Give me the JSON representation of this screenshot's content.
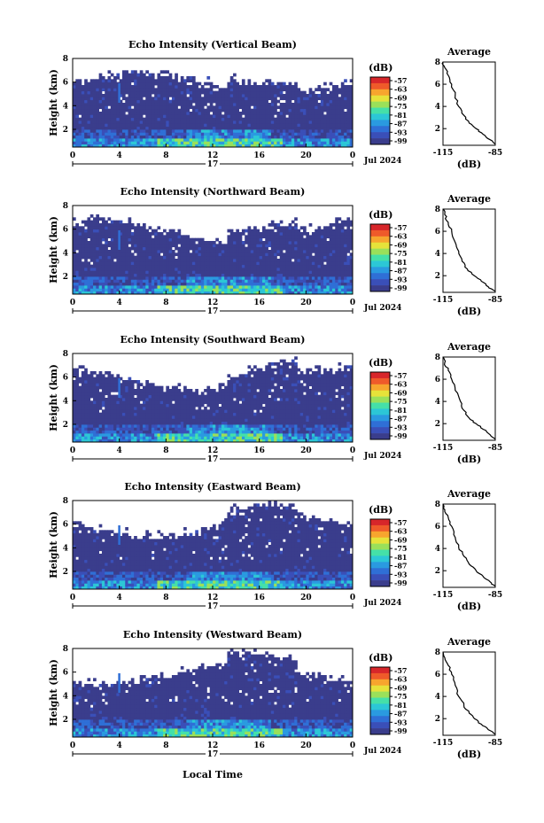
{
  "figure": {
    "xlabel_bottom": "Local Time",
    "date_label": "Jul 2024",
    "day_label": "17"
  },
  "chart_data": [
    {
      "type": "heatmap",
      "title": "Echo Intensity (Vertical Beam)",
      "ylabel": "Height (km)",
      "x_ticks": [
        "0",
        "4",
        "8",
        "12",
        "16",
        "20",
        "0"
      ],
      "y_ticks": [
        "2",
        "4",
        "6",
        "8"
      ],
      "xlim": [
        0,
        24
      ],
      "ylim": [
        0.5,
        8
      ],
      "colorbar": {
        "label": "(dB)",
        "ticks": [
          "-57",
          "-63",
          "-69",
          "-75",
          "-81",
          "-87",
          "-93",
          "-99"
        ],
        "range": [
          -102,
          -54
        ]
      },
      "profile": {
        "title": "Average",
        "xlabel": "(dB)",
        "x_ticks": [
          "-115",
          "-85"
        ],
        "y_ticks": [
          "2",
          "4",
          "6",
          "8"
        ],
        "xlim": [
          -115,
          -85
        ],
        "points": [
          [
            -85,
            0.6
          ],
          [
            -88,
            1.0
          ],
          [
            -92,
            1.5
          ],
          [
            -96,
            2.0
          ],
          [
            -100,
            2.5
          ],
          [
            -103,
            3.2
          ],
          [
            -106,
            4.0
          ],
          [
            -108,
            5.0
          ],
          [
            -110,
            6.0
          ],
          [
            -112,
            6.8
          ],
          [
            -114,
            7.5
          ],
          [
            -115,
            8.0
          ]
        ]
      }
    },
    {
      "type": "heatmap",
      "title": "Echo Intensity (Northward Beam)",
      "ylabel": "Height (km)",
      "x_ticks": [
        "0",
        "4",
        "8",
        "12",
        "16",
        "20",
        "0"
      ],
      "y_ticks": [
        "2",
        "4",
        "6",
        "8"
      ],
      "xlim": [
        0,
        24
      ],
      "ylim": [
        0.5,
        8
      ],
      "colorbar": {
        "label": "(dB)",
        "ticks": [
          "-57",
          "-63",
          "-69",
          "-75",
          "-81",
          "-87",
          "-93",
          "-99"
        ],
        "range": [
          -102,
          -54
        ]
      },
      "profile": {
        "title": "Average",
        "xlabel": "(dB)",
        "x_ticks": [
          "-115",
          "-85"
        ],
        "y_ticks": [
          "2",
          "4",
          "6",
          "8"
        ],
        "xlim": [
          -115,
          -85
        ],
        "points": [
          [
            -85,
            0.6
          ],
          [
            -89,
            1.0
          ],
          [
            -93,
            1.5
          ],
          [
            -97,
            2.0
          ],
          [
            -101,
            2.6
          ],
          [
            -104,
            3.3
          ],
          [
            -106,
            4.2
          ],
          [
            -108,
            5.0
          ],
          [
            -110,
            6.0
          ],
          [
            -112,
            6.8
          ],
          [
            -114,
            7.5
          ],
          [
            -115,
            8.0
          ]
        ]
      }
    },
    {
      "type": "heatmap",
      "title": "Echo Intensity (Southward Beam)",
      "ylabel": "Height (km)",
      "x_ticks": [
        "0",
        "4",
        "8",
        "12",
        "16",
        "20",
        "0"
      ],
      "y_ticks": [
        "2",
        "4",
        "6",
        "8"
      ],
      "xlim": [
        0,
        24
      ],
      "ylim": [
        0.5,
        8
      ],
      "colorbar": {
        "label": "(dB)",
        "ticks": [
          "-57",
          "-63",
          "-69",
          "-75",
          "-81",
          "-87",
          "-93",
          "-99"
        ],
        "range": [
          -102,
          -54
        ]
      },
      "profile": {
        "title": "Average",
        "xlabel": "(dB)",
        "x_ticks": [
          "-115",
          "-85"
        ],
        "y_ticks": [
          "2",
          "4",
          "6",
          "8"
        ],
        "xlim": [
          -115,
          -85
        ],
        "points": [
          [
            -85,
            0.6
          ],
          [
            -88,
            1.0
          ],
          [
            -92,
            1.5
          ],
          [
            -96,
            2.0
          ],
          [
            -100,
            2.5
          ],
          [
            -103,
            3.2
          ],
          [
            -105,
            4.0
          ],
          [
            -108,
            5.0
          ],
          [
            -110,
            6.0
          ],
          [
            -112,
            6.8
          ],
          [
            -114,
            7.5
          ],
          [
            -115,
            8.0
          ]
        ]
      }
    },
    {
      "type": "heatmap",
      "title": "Echo Intensity (Eastward Beam)",
      "ylabel": "Height (km)",
      "x_ticks": [
        "0",
        "4",
        "8",
        "12",
        "16",
        "20",
        "0"
      ],
      "y_ticks": [
        "2",
        "4",
        "6",
        "8"
      ],
      "xlim": [
        0,
        24
      ],
      "ylim": [
        0.5,
        8
      ],
      "colorbar": {
        "label": "(dB)",
        "ticks": [
          "-57",
          "-63",
          "-69",
          "-75",
          "-81",
          "-87",
          "-93",
          "-99"
        ],
        "range": [
          -102,
          -54
        ]
      },
      "profile": {
        "title": "Average",
        "xlabel": "(dB)",
        "x_ticks": [
          "-115",
          "-85"
        ],
        "y_ticks": [
          "2",
          "4",
          "6",
          "8"
        ],
        "xlim": [
          -115,
          -85
        ],
        "points": [
          [
            -85,
            0.6
          ],
          [
            -88,
            1.0
          ],
          [
            -92,
            1.5
          ],
          [
            -96,
            2.0
          ],
          [
            -100,
            2.6
          ],
          [
            -103,
            3.3
          ],
          [
            -106,
            4.1
          ],
          [
            -108,
            5.0
          ],
          [
            -110,
            6.0
          ],
          [
            -112,
            6.8
          ],
          [
            -114,
            7.5
          ],
          [
            -115,
            8.0
          ]
        ]
      }
    },
    {
      "type": "heatmap",
      "title": "Echo Intensity (Westward Beam)",
      "ylabel": "Height (km)",
      "x_ticks": [
        "0",
        "4",
        "8",
        "12",
        "16",
        "20",
        "0"
      ],
      "y_ticks": [
        "2",
        "4",
        "6",
        "8"
      ],
      "xlim": [
        0,
        24
      ],
      "ylim": [
        0.5,
        8
      ],
      "colorbar": {
        "label": "(dB)",
        "ticks": [
          "-57",
          "-63",
          "-69",
          "-75",
          "-81",
          "-87",
          "-93",
          "-99"
        ],
        "range": [
          -102,
          -54
        ]
      },
      "profile": {
        "title": "Average",
        "xlabel": "(dB)",
        "x_ticks": [
          "-115",
          "-85"
        ],
        "y_ticks": [
          "2",
          "4",
          "6",
          "8"
        ],
        "xlim": [
          -115,
          -85
        ],
        "points": [
          [
            -85,
            0.6
          ],
          [
            -89,
            1.0
          ],
          [
            -93,
            1.5
          ],
          [
            -97,
            2.0
          ],
          [
            -100,
            2.5
          ],
          [
            -103,
            3.2
          ],
          [
            -106,
            4.0
          ],
          [
            -108,
            5.0
          ],
          [
            -110,
            6.0
          ],
          [
            -112,
            6.8
          ],
          [
            -114,
            7.5
          ],
          [
            -115,
            8.0
          ]
        ]
      }
    }
  ]
}
